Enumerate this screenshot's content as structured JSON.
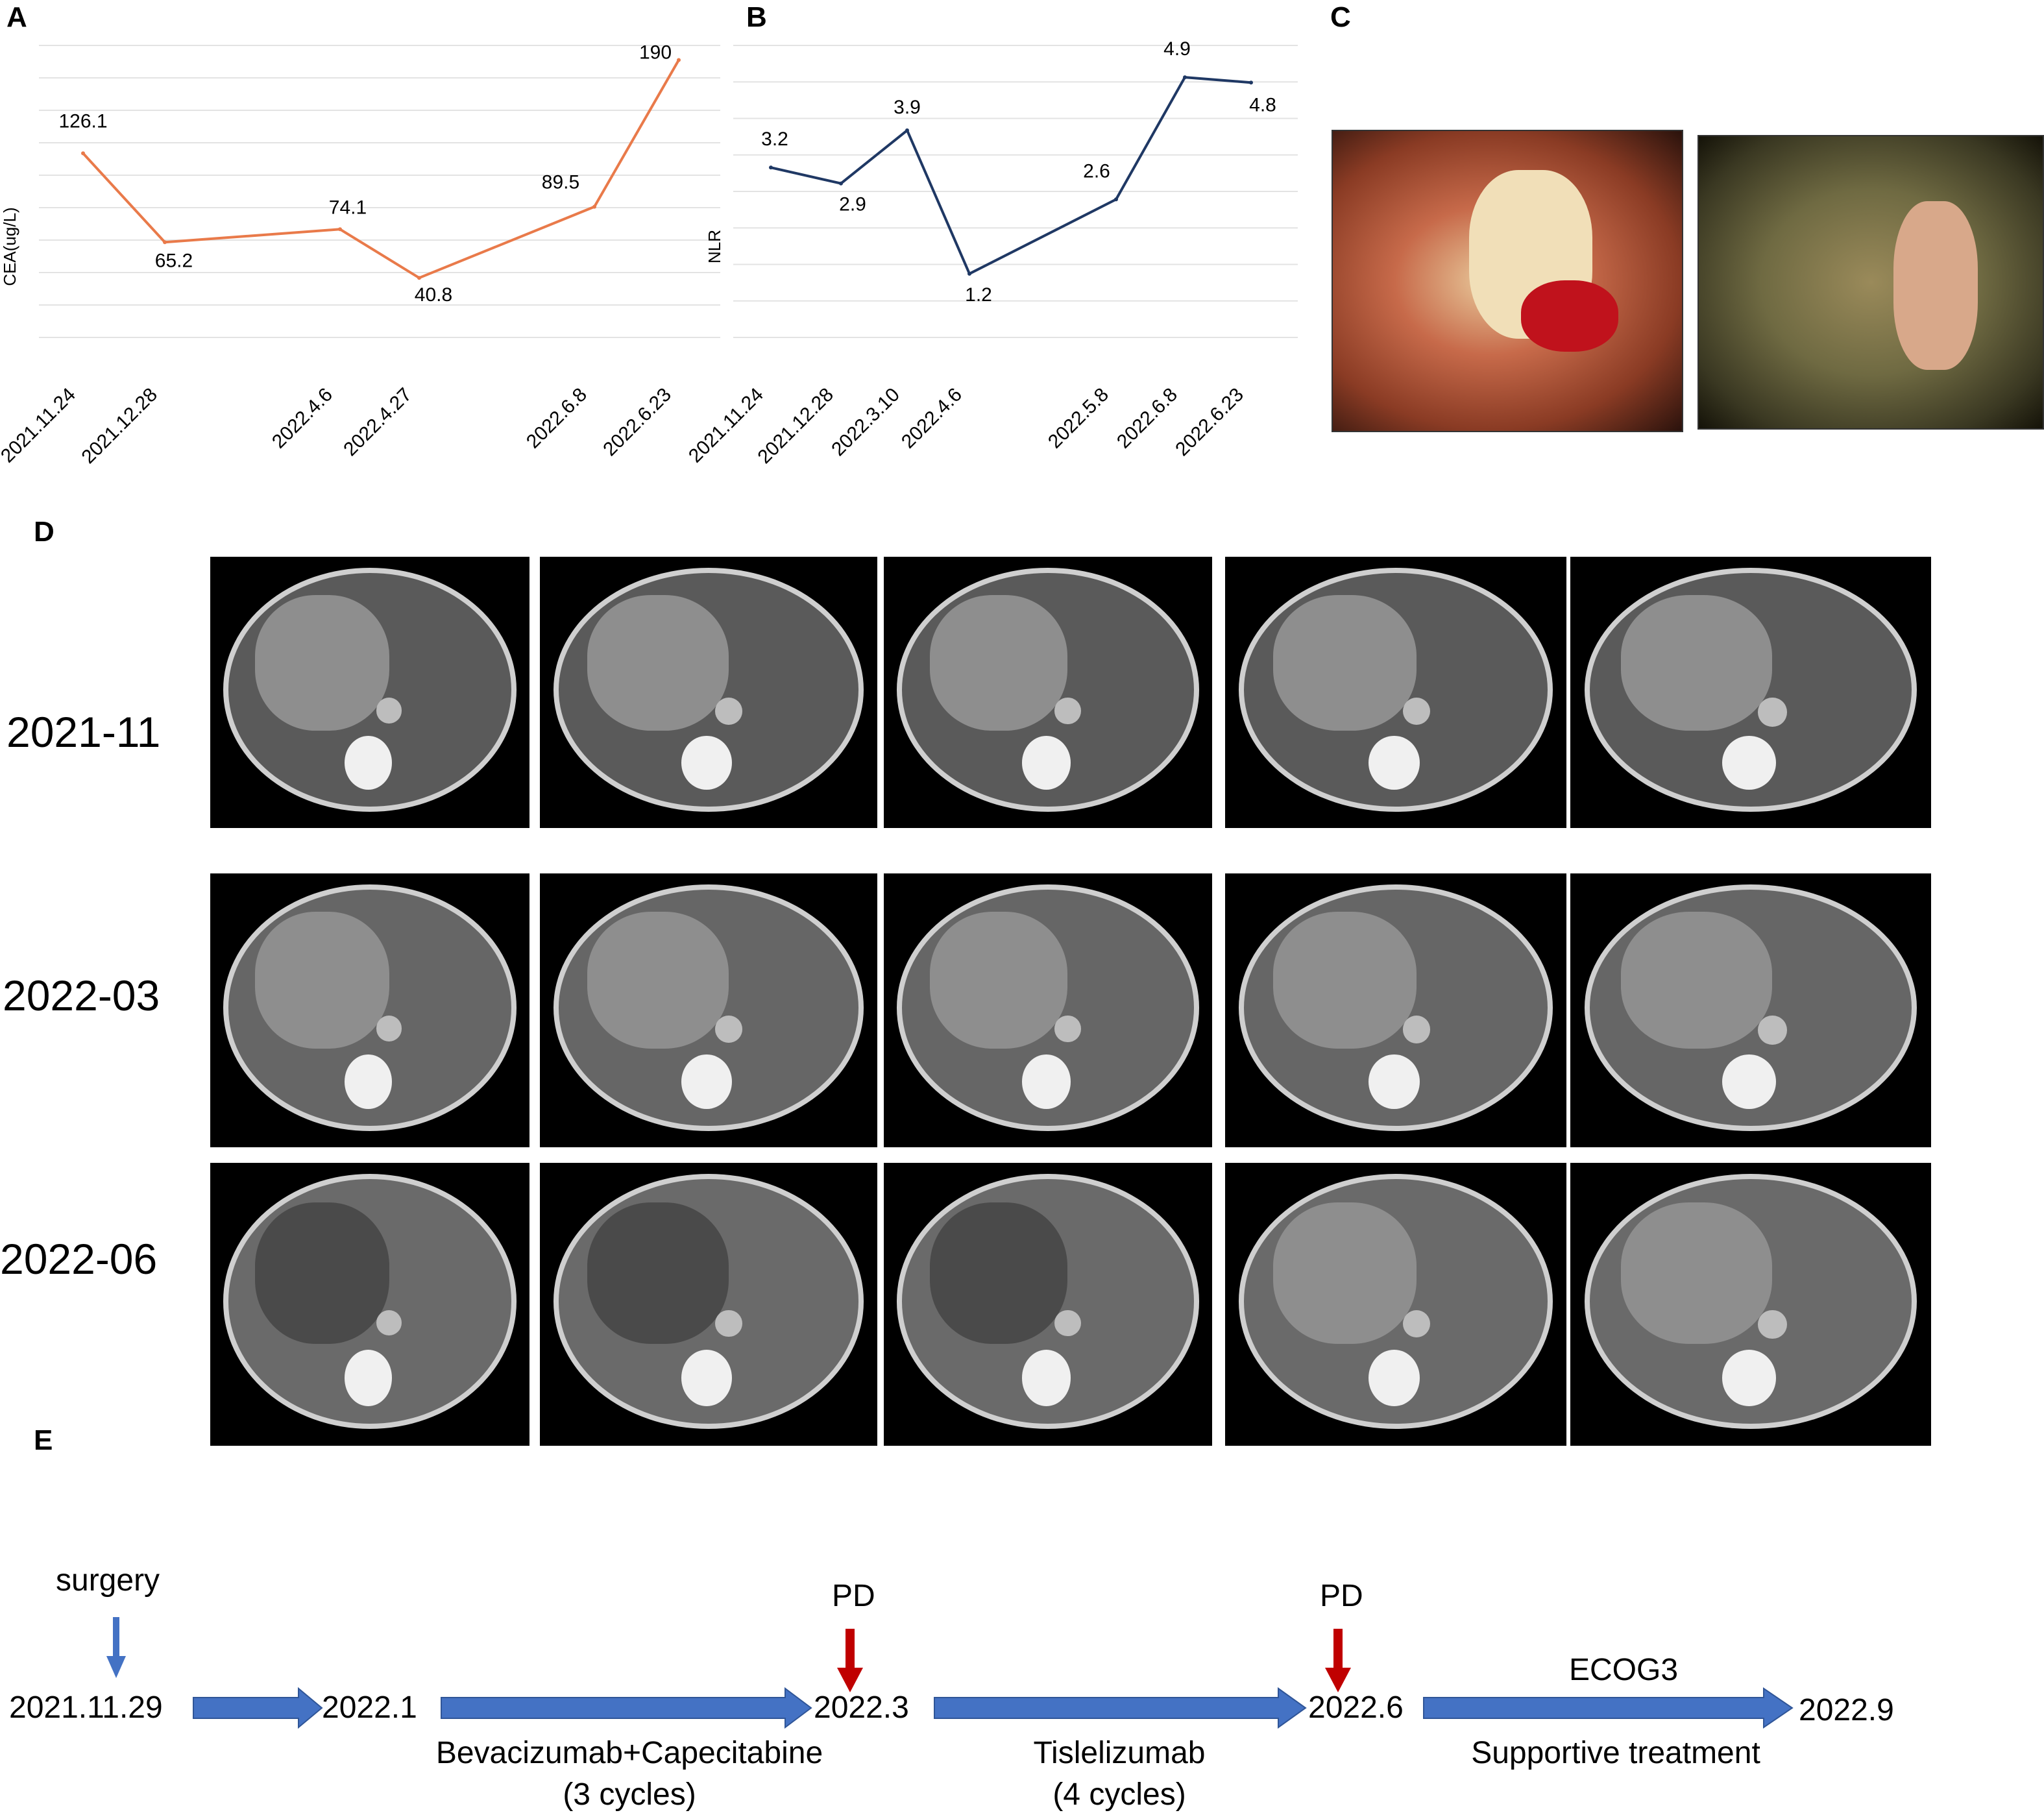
{
  "panels": {
    "a": "A",
    "b": "B",
    "c": "C",
    "d": "D",
    "e": "E"
  },
  "chart_data": [
    {
      "type": "line",
      "ylabel": "CEA(ug/L)",
      "categories": [
        "2021.11.24",
        "2021.12.28",
        "2022.4.6",
        "2022.4.27",
        "2022.6.8",
        "2022.6.23"
      ],
      "values": [
        126.1,
        65.2,
        74.1,
        40.8,
        89.5,
        190
      ],
      "data_labels": [
        "126.1",
        "65.2",
        "74.1",
        "40.8",
        "89.5",
        "190"
      ],
      "ylim": [
        0,
        200
      ],
      "grid": true,
      "color": "#e97a4a"
    },
    {
      "type": "line",
      "ylabel": "NLR",
      "categories": [
        "2021.11.24",
        "2021.12.28",
        "2022.3.10",
        "2022.4.6",
        "2022.5.8",
        "2022.6.8",
        "2022.6.23"
      ],
      "values": [
        3.2,
        2.9,
        3.9,
        1.2,
        2.6,
        4.9,
        4.8
      ],
      "data_labels": [
        "3.2",
        "2.9",
        "3.9",
        "1.2",
        "2.6",
        "4.9",
        "4.8"
      ],
      "ylim": [
        0,
        5.5
      ],
      "grid": true,
      "color": "#1f3864"
    }
  ],
  "ct_rows": [
    "2021-11",
    "2022-03",
    "2022-06"
  ],
  "timeline": {
    "surgery": "surgery",
    "pd1": "PD",
    "pd2": "PD",
    "ecog": "ECOG3",
    "dates": [
      "2021.11.29",
      "2022.1",
      "2022.3",
      "2022.6",
      "2022.9"
    ],
    "treat1_line1": "Bevacizumab+Capecitabine",
    "treat1_line2": "(3 cycles)",
    "treat2_line1": "Tislelizumab",
    "treat2_line2": "(4 cycles)",
    "treat3": "Supportive treatment",
    "arrow_color": "#4472c4",
    "pd_color": "#c00000"
  }
}
